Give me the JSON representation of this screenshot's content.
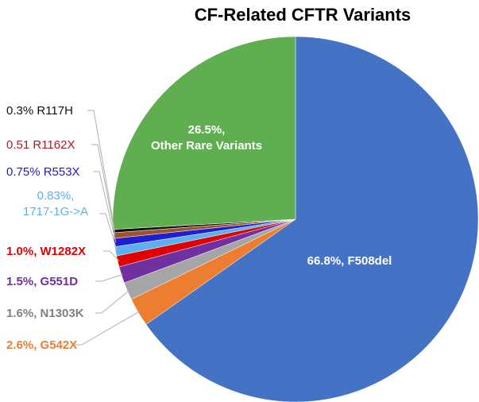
{
  "chart_data": {
    "type": "pie",
    "title": "CF-Related CFTR Variants",
    "start": "12 o'clock, clockwise",
    "slices": [
      {
        "label": "66.8%,  F508del",
        "name": "F508del",
        "value": 66.8,
        "color": "#4472C4",
        "label_color": "#ffffff"
      },
      {
        "label": "2.6%, G542X",
        "name": "G542X",
        "value": 2.6,
        "color": "#ED7D31",
        "label_color": "#ED7D31"
      },
      {
        "label": "1.6%, N1303K",
        "name": "N1303K",
        "value": 1.6,
        "color": "#A5A5A5",
        "label_color": "#808080"
      },
      {
        "label": "1.5%, G551D",
        "name": "G551D",
        "value": 1.5,
        "color": "#7030A0",
        "label_color": "#7030A0"
      },
      {
        "label": "1.0%, W1282X",
        "name": "W1282X",
        "value": 1.0,
        "color": "#E00000",
        "label_color": "#E00000"
      },
      {
        "label": [
          "0.83%,",
          "1717-1G->A"
        ],
        "name": "1717-1G->A",
        "value": 0.83,
        "color": "#5BB0F0",
        "label_color": "#5BB0F0"
      },
      {
        "label": "0.75% R553X",
        "name": "R553X",
        "value": 0.75,
        "color": "#1F1FD0",
        "label_color": "#1F1FB0"
      },
      {
        "label": "0.51 R1162X",
        "name": "R1162X",
        "value": 0.51,
        "color": "#A0522D",
        "label_color": "#B01C1C"
      },
      {
        "label": "0.3% R117H",
        "name": "R117H",
        "value": 0.3,
        "color": "#111111",
        "label_color": "#111111"
      },
      {
        "label": [
          "26.5%,",
          "Other Rare Variants"
        ],
        "name": "Other Rare Variants",
        "value": 26.5,
        "color": "#5FAE4F",
        "label_color": "#ffffff"
      }
    ]
  }
}
